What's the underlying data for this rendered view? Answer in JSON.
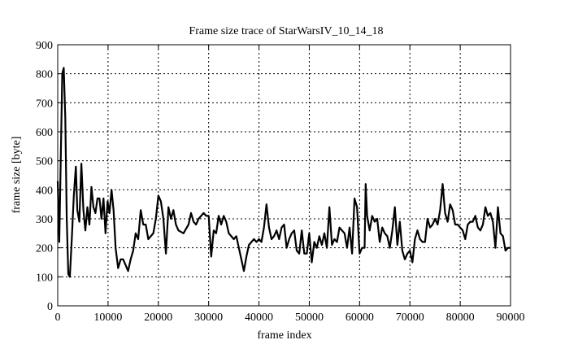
{
  "chart_data": {
    "type": "line",
    "title": "Frame size trace of StarWarsIV_10_14_18",
    "xlabel": "frame index",
    "ylabel": "frame size [byte]",
    "xlim": [
      0,
      90000
    ],
    "ylim": [
      0,
      900
    ],
    "xticks": [
      0,
      10000,
      20000,
      30000,
      40000,
      50000,
      60000,
      70000,
      80000,
      90000
    ],
    "yticks": [
      0,
      100,
      200,
      300,
      400,
      500,
      600,
      700,
      800,
      900
    ],
    "grid": true,
    "series": [
      {
        "name": "frame size",
        "color": "#000000",
        "x": [
          0,
          300,
          600,
          900,
          1200,
          1500,
          1800,
          2100,
          2400,
          2800,
          3200,
          3600,
          3900,
          4300,
          4700,
          5100,
          5500,
          5900,
          6300,
          6700,
          7100,
          7500,
          7900,
          8300,
          8700,
          9100,
          9500,
          9900,
          10300,
          10700,
          11100,
          11500,
          12000,
          12500,
          13000,
          13500,
          14000,
          14500,
          15000,
          15500,
          16000,
          16500,
          17000,
          17500,
          18000,
          18500,
          19000,
          19500,
          20000,
          20500,
          21000,
          21500,
          22000,
          22500,
          23000,
          23500,
          24000,
          25000,
          26000,
          26500,
          27000,
          27500,
          28000,
          29000,
          29500,
          30000,
          30500,
          31000,
          31500,
          32000,
          32500,
          33000,
          33500,
          34000,
          35000,
          35500,
          36000,
          36500,
          37000,
          37500,
          38000,
          38500,
          39000,
          39500,
          40000,
          40500,
          41000,
          41500,
          42000,
          42500,
          43000,
          43500,
          44000,
          44500,
          45000,
          45500,
          46000,
          46500,
          47000,
          47500,
          48000,
          48500,
          49000,
          49500,
          50000,
          50500,
          51000,
          51500,
          52000,
          52500,
          53000,
          53500,
          54000,
          54500,
          55000,
          55500,
          56000,
          56500,
          57000,
          57500,
          58000,
          58500,
          59000,
          59500,
          60000,
          60500,
          61000,
          61200,
          61500,
          62000,
          62500,
          63000,
          63500,
          64000,
          64500,
          65000,
          65500,
          66000,
          66500,
          67000,
          67500,
          68000,
          68500,
          69000,
          69500,
          70000,
          70500,
          71000,
          71500,
          72000,
          72500,
          73000,
          73500,
          74000,
          74500,
          75000,
          75500,
          76000,
          76500,
          77000,
          77500,
          78000,
          78500,
          79000,
          79500,
          80000,
          80500,
          81000,
          81500,
          82000,
          82500,
          83000,
          83500,
          84000,
          84500,
          85000,
          85500,
          86000,
          86500,
          87000,
          87500,
          88000,
          88500,
          89000,
          89500,
          90000
        ],
        "y": [
          430,
          220,
          500,
          800,
          820,
          650,
          300,
          110,
          100,
          230,
          380,
          480,
          330,
          290,
          490,
          330,
          260,
          340,
          280,
          410,
          340,
          320,
          370,
          370,
          300,
          370,
          250,
          360,
          320,
          400,
          330,
          200,
          130,
          160,
          160,
          140,
          120,
          160,
          190,
          250,
          230,
          330,
          280,
          280,
          230,
          240,
          250,
          300,
          380,
          360,
          300,
          180,
          340,
          300,
          330,
          280,
          260,
          250,
          280,
          320,
          290,
          280,
          300,
          320,
          310,
          310,
          170,
          260,
          250,
          310,
          280,
          310,
          290,
          250,
          230,
          240,
          200,
          160,
          120,
          170,
          210,
          220,
          230,
          220,
          230,
          220,
          270,
          350,
          270,
          230,
          240,
          260,
          230,
          270,
          280,
          200,
          230,
          250,
          260,
          190,
          180,
          260,
          180,
          180,
          250,
          150,
          220,
          200,
          240,
          210,
          250,
          200,
          340,
          210,
          230,
          220,
          270,
          260,
          250,
          200,
          270,
          180,
          370,
          340,
          180,
          200,
          200,
          420,
          310,
          260,
          310,
          290,
          300,
          220,
          270,
          250,
          240,
          200,
          260,
          340,
          210,
          290,
          190,
          160,
          180,
          190,
          150,
          230,
          260,
          230,
          220,
          220,
          300,
          270,
          280,
          300,
          280,
          330,
          420,
          320,
          290,
          350,
          330,
          280,
          280,
          270,
          260,
          230,
          280,
          290,
          290,
          310,
          270,
          260,
          280,
          340,
          310,
          320,
          290,
          200,
          340,
          250,
          240,
          190,
          200,
          200
        ]
      }
    ]
  }
}
